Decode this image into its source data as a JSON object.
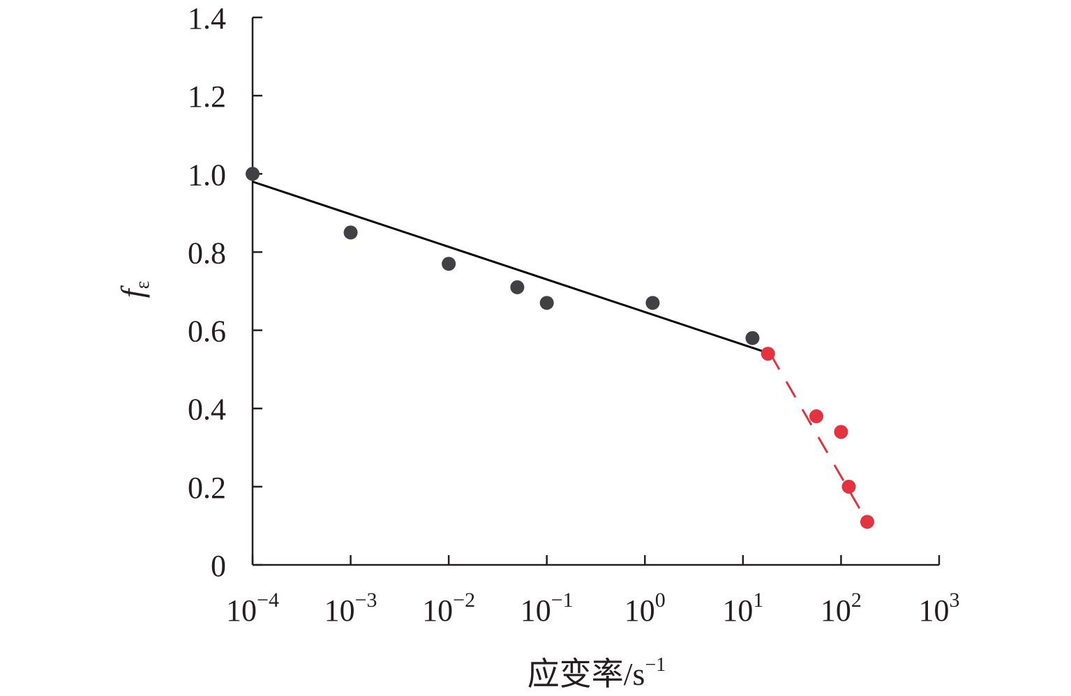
{
  "chart_data": {
    "type": "scatter",
    "title": "",
    "xlabel": "应变率/s",
    "xlabel_sup": "−1",
    "ylabel": "f",
    "ylabel_sub": "ε",
    "x_scale": "log",
    "xlim": [
      0.0001,
      1000
    ],
    "ylim": [
      0,
      1.4
    ],
    "grid": false,
    "x_ticks": [
      {
        "value": 0.0001,
        "base": "10",
        "exp": "−4"
      },
      {
        "value": 0.001,
        "base": "10",
        "exp": "−3"
      },
      {
        "value": 0.01,
        "base": "10",
        "exp": "−2"
      },
      {
        "value": 0.1,
        "base": "10",
        "exp": "−1"
      },
      {
        "value": 1,
        "base": "10",
        "exp": "0"
      },
      {
        "value": 10,
        "base": "10",
        "exp": "1"
      },
      {
        "value": 100,
        "base": "10",
        "exp": "2"
      },
      {
        "value": 1000,
        "base": "10",
        "exp": "3"
      }
    ],
    "y_ticks": [
      {
        "value": 0,
        "label": "0"
      },
      {
        "value": 0.2,
        "label": "0.2"
      },
      {
        "value": 0.4,
        "label": "0.4"
      },
      {
        "value": 0.6,
        "label": "0.6"
      },
      {
        "value": 0.8,
        "label": "0.8"
      },
      {
        "value": 1.0,
        "label": "1.0"
      },
      {
        "value": 1.2,
        "label": "1.2"
      },
      {
        "value": 1.4,
        "label": "1.4"
      }
    ],
    "series": [
      {
        "color": "#414042",
        "marker": "circle",
        "points": [
          {
            "x": 0.0001,
            "y": 1.0
          },
          {
            "x": 0.001,
            "y": 0.85
          },
          {
            "x": 0.01,
            "y": 0.77
          },
          {
            "x": 0.05,
            "y": 0.71
          },
          {
            "x": 0.1,
            "y": 0.67
          },
          {
            "x": 1.2,
            "y": 0.67
          },
          {
            "x": 12.5,
            "y": 0.58
          }
        ],
        "fit_line": {
          "style": "solid",
          "color": "#000000",
          "from": {
            "x": 0.0001,
            "y": 0.98
          },
          "to": {
            "x": 19,
            "y": 0.54
          }
        }
      },
      {
        "color": "#e5323f",
        "marker": "circle",
        "points": [
          {
            "x": 18,
            "y": 0.54
          },
          {
            "x": 56,
            "y": 0.38
          },
          {
            "x": 100,
            "y": 0.34
          },
          {
            "x": 120,
            "y": 0.2
          },
          {
            "x": 185,
            "y": 0.11
          }
        ],
        "fit_line": {
          "style": "dashed",
          "color": "#e5323f",
          "from": {
            "x": 19,
            "y": 0.54
          },
          "to": {
            "x": 185,
            "y": 0.11
          }
        }
      }
    ]
  }
}
